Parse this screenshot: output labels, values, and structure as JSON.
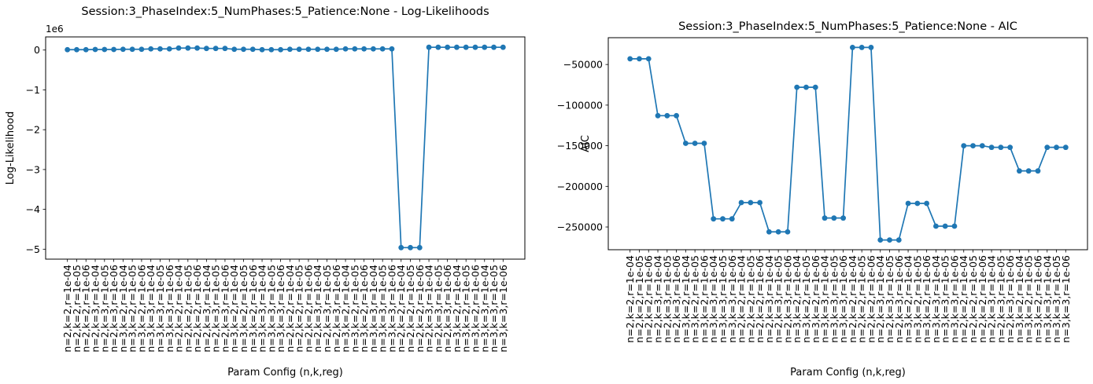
{
  "page": {
    "background": "#ffffff"
  },
  "chart_data": [
    {
      "type": "line",
      "title": "Session:3_PhaseIndex:5_NumPhases:5_Patience:None - Log-Likelihoods",
      "xlabel": "Param Config (n,k,reg)",
      "ylabel": "Log-Likelihood",
      "offset_text": "1e6",
      "line_color": "#1f77b4",
      "marker": "o",
      "grid": false,
      "legend": null,
      "xlim": [
        -2.35,
        49.35
      ],
      "ylim": [
        -5250000,
        330000
      ],
      "yticks": [
        0,
        -1000000,
        -2000000,
        -3000000,
        -4000000,
        -5000000
      ],
      "ytick_labels": [
        "0",
        "−1",
        "−2",
        "−3",
        "−4",
        "−5"
      ],
      "categories": [
        "n=2,k=2,r=1e-04",
        "n=2,k=2,r=1e-05",
        "n=2,k=2,r=1e-06",
        "n=2,k=3,r=1e-04",
        "n=2,k=3,r=1e-05",
        "n=2,k=3,r=1e-06",
        "n=3,k=2,r=1e-04",
        "n=3,k=2,r=1e-05",
        "n=3,k=2,r=1e-06",
        "n=3,k=3,r=1e-04",
        "n=3,k=3,r=1e-05",
        "n=3,k=3,r=1e-06",
        "n=2,k=2,r=1e-04",
        "n=2,k=2,r=1e-05",
        "n=2,k=2,r=1e-06",
        "n=2,k=3,r=1e-04",
        "n=2,k=3,r=1e-05",
        "n=2,k=3,r=1e-06",
        "n=3,k=2,r=1e-04",
        "n=3,k=2,r=1e-05",
        "n=3,k=2,r=1e-06",
        "n=3,k=3,r=1e-04",
        "n=3,k=3,r=1e-05",
        "n=3,k=3,r=1e-06",
        "n=2,k=2,r=1e-04",
        "n=2,k=2,r=1e-05",
        "n=2,k=2,r=1e-06",
        "n=2,k=3,r=1e-04",
        "n=2,k=3,r=1e-05",
        "n=2,k=3,r=1e-06",
        "n=3,k=2,r=1e-04",
        "n=3,k=2,r=1e-05",
        "n=3,k=2,r=1e-06",
        "n=3,k=3,r=1e-04",
        "n=3,k=3,r=1e-05",
        "n=3,k=3,r=1e-06",
        "n=2,k=2,r=1e-04",
        "n=2,k=2,r=1e-05",
        "n=2,k=2,r=1e-06",
        "n=2,k=3,r=1e-04",
        "n=2,k=3,r=1e-05",
        "n=2,k=3,r=1e-06",
        "n=3,k=2,r=1e-04",
        "n=3,k=2,r=1e-05",
        "n=3,k=2,r=1e-06",
        "n=3,k=3,r=1e-04",
        "n=3,k=3,r=1e-05",
        "n=3,k=3,r=1e-06"
      ],
      "values": [
        10000,
        10000,
        10000,
        15000,
        15000,
        15000,
        20000,
        20000,
        20000,
        30000,
        30000,
        30000,
        50000,
        50000,
        50000,
        40000,
        40000,
        40000,
        20000,
        20000,
        20000,
        10000,
        10000,
        10000,
        20000,
        20000,
        20000,
        20000,
        20000,
        20000,
        30000,
        30000,
        30000,
        30000,
        30000,
        30000,
        -4960000,
        -4960000,
        -4960000,
        70000,
        70000,
        70000,
        70000,
        70000,
        70000,
        70000,
        70000,
        70000
      ]
    },
    {
      "type": "line",
      "title": "Session:3_PhaseIndex:5_NumPhases:5_Patience:None - AIC",
      "xlabel": "Param Config (n,k,reg)",
      "ylabel": "AIC",
      "offset_text": null,
      "line_color": "#1f77b4",
      "marker": "o",
      "grid": false,
      "legend": null,
      "xlim": [
        -2.35,
        49.35
      ],
      "ylim": [
        -278000,
        -17000
      ],
      "yticks": [
        -50000,
        -100000,
        -150000,
        -200000,
        -250000
      ],
      "ytick_labels": [
        "−50000",
        "−100000",
        "−150000",
        "−200000",
        "−250000"
      ],
      "categories": [
        "n=2,k=2,r=1e-04",
        "n=2,k=2,r=1e-05",
        "n=2,k=2,r=1e-06",
        "n=2,k=3,r=1e-04",
        "n=2,k=3,r=1e-05",
        "n=2,k=3,r=1e-06",
        "n=3,k=2,r=1e-04",
        "n=3,k=2,r=1e-05",
        "n=3,k=2,r=1e-06",
        "n=3,k=3,r=1e-04",
        "n=3,k=3,r=1e-05",
        "n=3,k=3,r=1e-06",
        "n=2,k=2,r=1e-04",
        "n=2,k=2,r=1e-05",
        "n=2,k=2,r=1e-06",
        "n=2,k=3,r=1e-04",
        "n=2,k=3,r=1e-05",
        "n=2,k=3,r=1e-06",
        "n=3,k=2,r=1e-04",
        "n=3,k=2,r=1e-05",
        "n=3,k=2,r=1e-06",
        "n=3,k=3,r=1e-04",
        "n=3,k=3,r=1e-05",
        "n=3,k=3,r=1e-06",
        "n=2,k=2,r=1e-04",
        "n=2,k=2,r=1e-05",
        "n=2,k=2,r=1e-06",
        "n=2,k=3,r=1e-04",
        "n=2,k=3,r=1e-05",
        "n=2,k=3,r=1e-06",
        "n=3,k=2,r=1e-04",
        "n=3,k=2,r=1e-05",
        "n=3,k=2,r=1e-06",
        "n=3,k=3,r=1e-04",
        "n=3,k=3,r=1e-05",
        "n=3,k=3,r=1e-06",
        "n=2,k=2,r=1e-04",
        "n=2,k=2,r=1e-05",
        "n=2,k=2,r=1e-06",
        "n=2,k=3,r=1e-04",
        "n=2,k=3,r=1e-05",
        "n=2,k=3,r=1e-06",
        "n=3,k=2,r=1e-04",
        "n=3,k=2,r=1e-05",
        "n=3,k=2,r=1e-06",
        "n=3,k=3,r=1e-04",
        "n=3,k=3,r=1e-05",
        "n=3,k=3,r=1e-06"
      ],
      "values": [
        -43000,
        -43000,
        -43000,
        -113000,
        -113000,
        -113000,
        -147000,
        -147000,
        -147000,
        -240000,
        -240000,
        -240000,
        -220000,
        -220000,
        -220000,
        -256000,
        -256000,
        -256000,
        -78000,
        -78000,
        -78000,
        -239000,
        -239000,
        -239000,
        -29000,
        -29000,
        -29000,
        -266000,
        -266000,
        -266000,
        -221000,
        -221000,
        -221000,
        -249000,
        -249000,
        -249000,
        -150000,
        -150000,
        -150000,
        -152000,
        -152000,
        -152000,
        -181000,
        -181000,
        -181000,
        -152000,
        -152000,
        -152000
      ]
    }
  ]
}
